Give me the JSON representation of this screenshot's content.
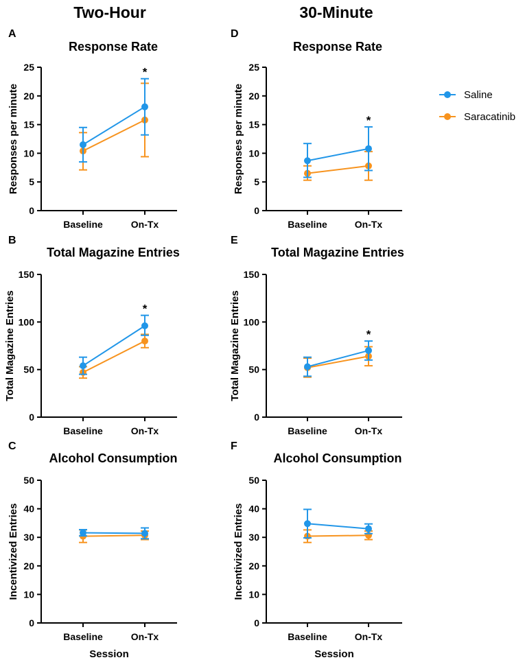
{
  "figure": {
    "column_titles": [
      "Two-Hour",
      "30-Minute"
    ],
    "legend": [
      {
        "name": "Saline",
        "color": "#2196e8"
      },
      {
        "name": "Saracatinib",
        "color": "#f7931e"
      }
    ]
  },
  "chart_data": [
    {
      "panel": "A",
      "type": "line",
      "title": "Response Rate",
      "xlabel": "",
      "ylabel": "Responses per minute",
      "categories": [
        "Baseline",
        "On-Tx"
      ],
      "ylim": [
        0,
        25
      ],
      "yticks": [
        0,
        5,
        10,
        15,
        20,
        25
      ],
      "significance": [
        "",
        "*"
      ],
      "series": [
        {
          "name": "Saline",
          "values": [
            11.5,
            18.1
          ],
          "err_low": [
            8.5,
            13.2
          ],
          "err_high": [
            14.5,
            23.0
          ]
        },
        {
          "name": "Saracatinib",
          "values": [
            10.4,
            15.8
          ],
          "err_low": [
            7.1,
            9.4
          ],
          "err_high": [
            13.6,
            22.2
          ]
        }
      ]
    },
    {
      "panel": "B",
      "type": "line",
      "title": "Total Magazine Entries",
      "xlabel": "",
      "ylabel": "Total Magazine Entries",
      "categories": [
        "Baseline",
        "On-Tx"
      ],
      "ylim": [
        0,
        150
      ],
      "yticks": [
        0,
        50,
        100,
        150
      ],
      "significance": [
        "",
        "*"
      ],
      "series": [
        {
          "name": "Saline",
          "values": [
            54,
            96
          ],
          "err_low": [
            45,
            86
          ],
          "err_high": [
            63,
            107
          ]
        },
        {
          "name": "Saracatinib",
          "values": [
            47,
            80
          ],
          "err_low": [
            41,
            73
          ],
          "err_high": [
            53,
            87
          ]
        }
      ]
    },
    {
      "panel": "C",
      "type": "line",
      "title": "Alcohol Consumption",
      "xlabel": "Session",
      "ylabel": "Incentivized Entries",
      "categories": [
        "Baseline",
        "On-Tx"
      ],
      "ylim": [
        0,
        50
      ],
      "yticks": [
        0,
        10,
        20,
        30,
        40,
        50
      ],
      "significance": [
        "",
        ""
      ],
      "series": [
        {
          "name": "Saline",
          "values": [
            31.6,
            31.4
          ],
          "err_low": [
            30.5,
            29.5
          ],
          "err_high": [
            32.7,
            33.3
          ]
        },
        {
          "name": "Saracatinib",
          "values": [
            30.4,
            30.7
          ],
          "err_low": [
            28.2,
            29.2
          ],
          "err_high": [
            32.6,
            32.2
          ]
        }
      ]
    },
    {
      "panel": "D",
      "type": "line",
      "title": "Response Rate",
      "xlabel": "",
      "ylabel": "Responses per minute",
      "categories": [
        "Baseline",
        "On-Tx"
      ],
      "ylim": [
        0,
        25
      ],
      "yticks": [
        0,
        5,
        10,
        15,
        20,
        25
      ],
      "significance": [
        "",
        "*"
      ],
      "series": [
        {
          "name": "Saline",
          "values": [
            8.7,
            10.8
          ],
          "err_low": [
            5.8,
            7.0
          ],
          "err_high": [
            11.7,
            14.6
          ]
        },
        {
          "name": "Saracatinib",
          "values": [
            6.5,
            7.8
          ],
          "err_low": [
            5.3,
            5.3
          ],
          "err_high": [
            7.8,
            10.3
          ]
        }
      ]
    },
    {
      "panel": "E",
      "type": "line",
      "title": "Total Magazine Entries",
      "xlabel": "",
      "ylabel": "Total Magazine Entries",
      "categories": [
        "Baseline",
        "On-Tx"
      ],
      "ylim": [
        0,
        150
      ],
      "yticks": [
        0,
        50,
        100,
        150
      ],
      "significance": [
        "",
        "*"
      ],
      "series": [
        {
          "name": "Saline",
          "values": [
            53,
            70
          ],
          "err_low": [
            43,
            60
          ],
          "err_high": [
            63,
            80
          ]
        },
        {
          "name": "Saracatinib",
          "values": [
            52,
            64
          ],
          "err_low": [
            42,
            54
          ],
          "err_high": [
            62,
            74
          ]
        }
      ]
    },
    {
      "panel": "F",
      "type": "line",
      "title": "Alcohol Consumption",
      "xlabel": "Session",
      "ylabel": "Incentivized Entries",
      "categories": [
        "Baseline",
        "On-Tx"
      ],
      "ylim": [
        0,
        50
      ],
      "yticks": [
        0,
        10,
        20,
        30,
        40,
        50
      ],
      "significance": [
        "",
        ""
      ],
      "series": [
        {
          "name": "Saline",
          "values": [
            34.8,
            33.0
          ],
          "err_low": [
            29.8,
            31.3
          ],
          "err_high": [
            39.8,
            34.7
          ]
        },
        {
          "name": "Saracatinib",
          "values": [
            30.4,
            30.7
          ],
          "err_low": [
            28.2,
            29.2
          ],
          "err_high": [
            32.6,
            32.2
          ]
        }
      ]
    }
  ]
}
